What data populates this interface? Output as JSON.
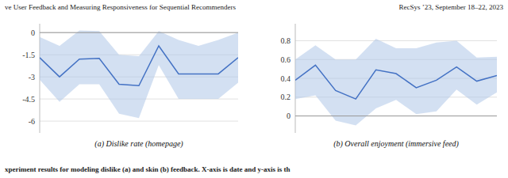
{
  "chart_data": [
    {
      "type": "line",
      "xlabel": "(a) Dislike rate (homepage)",
      "x": [
        0,
        1,
        2,
        3,
        4,
        5,
        6,
        7,
        8,
        9,
        10
      ],
      "xlim": [
        0,
        10
      ],
      "series": [
        {
          "color": "#4472c4",
          "fill_color": "#aec6e8",
          "values": [
            -1.7,
            -3.0,
            -1.8,
            -1.75,
            -3.5,
            -3.6,
            -0.9,
            -2.8,
            -2.8,
            -2.8,
            -1.7
          ],
          "upper": [
            -0.3,
            -0.9,
            0.15,
            0.1,
            -1.5,
            -1.6,
            0.1,
            -0.5,
            -0.9,
            -0.5,
            0.0
          ],
          "lower": [
            -3.2,
            -4.7,
            -3.5,
            -3.5,
            -5.5,
            -5.8,
            -2.2,
            -4.5,
            -4.5,
            -4.5,
            -3.4
          ]
        }
      ],
      "ylim": [
        -6.8,
        0.6
      ],
      "yticks": [
        0,
        -1.5,
        -3,
        -4.5,
        -6
      ],
      "reference_lines": [
        {
          "value": 0,
          "color": "#999999"
        }
      ],
      "grid": true,
      "tick_labels": "y"
    },
    {
      "type": "line",
      "xlabel": "(b) Overall enjoyment (immersive feed)",
      "x": [
        0,
        1,
        2,
        3,
        4,
        5,
        6,
        7,
        8,
        9,
        10
      ],
      "xlim": [
        0,
        10
      ],
      "series": [
        {
          "color": "#4472c4",
          "fill_color": "#aec6e8",
          "values": [
            0.38,
            0.54,
            0.27,
            0.18,
            0.49,
            0.45,
            0.3,
            0.38,
            0.52,
            0.37,
            0.43
          ],
          "upper": [
            0.6,
            0.75,
            0.6,
            0.6,
            0.82,
            0.72,
            0.72,
            0.78,
            0.8,
            0.62,
            0.63
          ],
          "lower": [
            0.18,
            0.22,
            -0.05,
            -0.1,
            0.08,
            0.17,
            0.02,
            0.05,
            0.28,
            0.12,
            0.25
          ]
        }
      ],
      "ylim": [
        -0.18,
        0.98
      ],
      "yticks": [
        0,
        0.2,
        0.4,
        0.6,
        0.8
      ],
      "reference_lines": [
        {
          "value": 0,
          "color": "#999999"
        }
      ],
      "grid": true,
      "tick_labels": "y"
    }
  ],
  "annotations": [
    "ve User Feedback and Measuring Responsiveness for Sequential Recommenders",
    "RecSys ’23, September 18–22, 2023",
    "xperiment results for modeling dislike (a) and skin (b) feedback. X-axis is date and y-axis is th"
  ]
}
